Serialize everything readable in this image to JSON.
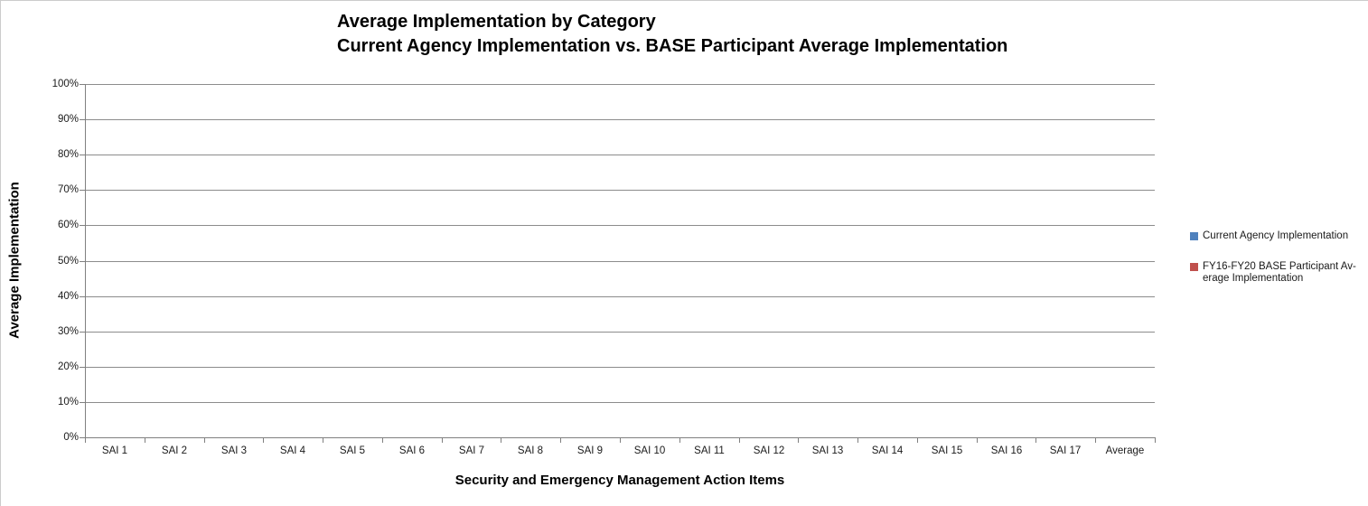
{
  "window": {
    "background": "#ffffff",
    "edge_border_color": "#cccccc"
  },
  "chart_data": {
    "type": "bar",
    "title": "Average Implementation by Category Current Agency Implementation vs. BASE Participant Average Implementation",
    "title_lines": [
      "Average Implementation by Category",
      "Current Agency Implementation vs. BASE Participant Average Implementation"
    ],
    "xlabel": "Security and Emergency Management Action Items",
    "ylabel": "Average Implementation",
    "categories": [
      "SAI 1",
      "SAI 2",
      "SAI 3",
      "SAI 4",
      "SAI 5",
      "SAI 6",
      "SAI 7",
      "SAI 8",
      "SAI 9",
      "SAI 10",
      "SAI 11",
      "SAI 12",
      "SAI 13",
      "SAI 14",
      "SAI 15",
      "SAI 16",
      "SAI 17",
      "Average"
    ],
    "series": [
      {
        "name": "Current Agency Implementation",
        "color": "#4F81BD",
        "values": [
          0,
          0,
          0,
          0,
          0,
          0,
          0,
          0,
          0,
          0,
          0,
          0,
          0,
          0,
          0,
          0,
          0,
          0
        ]
      },
      {
        "name": "FY16-FY20 BASE Participant Average Implementation",
        "color": "#C0504D",
        "values": [
          0,
          0,
          0,
          0,
          0,
          0,
          0,
          0,
          0,
          0,
          0,
          0,
          0,
          0,
          0,
          0,
          0,
          0
        ]
      }
    ],
    "ylim": [
      0,
      100
    ],
    "ytick_values": [
      0,
      10,
      20,
      30,
      40,
      50,
      60,
      70,
      80,
      90,
      100
    ],
    "ytick_labels": [
      "0%",
      "10%",
      "20%",
      "30%",
      "40%",
      "50%",
      "60%",
      "70%",
      "80%",
      "90%",
      "100%"
    ],
    "grid": "horizontal",
    "legend": {
      "position": "right",
      "items": [
        {
          "swatch_color": "#4F81BD",
          "lines": [
            "Current Agency Implementation"
          ]
        },
        {
          "swatch_color": "#C0504D",
          "lines": [
            "FY16-FY20 BASE Participant Av-",
            "erage Implementation"
          ]
        }
      ]
    },
    "colors": {
      "gridline": "#8C8C8C",
      "axis_line": "#808080",
      "tick_text": "#1a1a1a",
      "title_text": "#000000"
    }
  }
}
